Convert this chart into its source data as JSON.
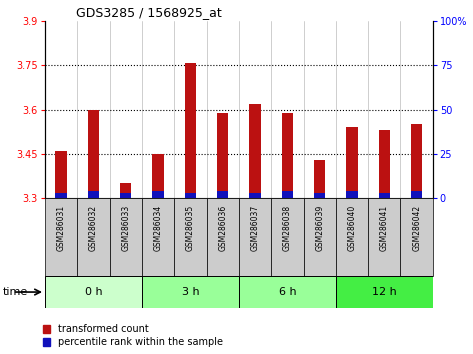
{
  "title": "GDS3285 / 1568925_at",
  "samples": [
    "GSM286031",
    "GSM286032",
    "GSM286033",
    "GSM286034",
    "GSM286035",
    "GSM286036",
    "GSM286037",
    "GSM286038",
    "GSM286039",
    "GSM286040",
    "GSM286041",
    "GSM286042"
  ],
  "transformed_count": [
    3.46,
    3.6,
    3.35,
    3.45,
    3.76,
    3.59,
    3.62,
    3.59,
    3.43,
    3.54,
    3.53,
    3.55
  ],
  "percentile_rank": [
    3,
    4,
    3,
    4,
    3,
    4,
    3,
    4,
    3,
    4,
    3,
    4
  ],
  "time_groups": [
    {
      "label": "0 h",
      "start": 0,
      "end": 3,
      "color": "#ccffcc"
    },
    {
      "label": "3 h",
      "start": 3,
      "end": 6,
      "color": "#99ff99"
    },
    {
      "label": "6 h",
      "start": 6,
      "end": 9,
      "color": "#99ff99"
    },
    {
      "label": "12 h",
      "start": 9,
      "end": 12,
      "color": "#44ee44"
    }
  ],
  "ylim_left": [
    3.3,
    3.9
  ],
  "ylim_right": [
    0,
    100
  ],
  "yticks_left": [
    3.3,
    3.45,
    3.6,
    3.75,
    3.9
  ],
  "yticks_right": [
    0,
    25,
    50,
    75,
    100
  ],
  "yticks_dotted": [
    3.45,
    3.6,
    3.75
  ],
  "bar_color_red": "#bb1111",
  "bar_color_blue": "#1111bb",
  "bar_width": 0.35,
  "blue_bar_width": 0.35,
  "bg_plot_color": "#ffffff",
  "bg_sample_color": "#cccccc",
  "legend_red_label": "transformed count",
  "legend_blue_label": "percentile rank within the sample"
}
